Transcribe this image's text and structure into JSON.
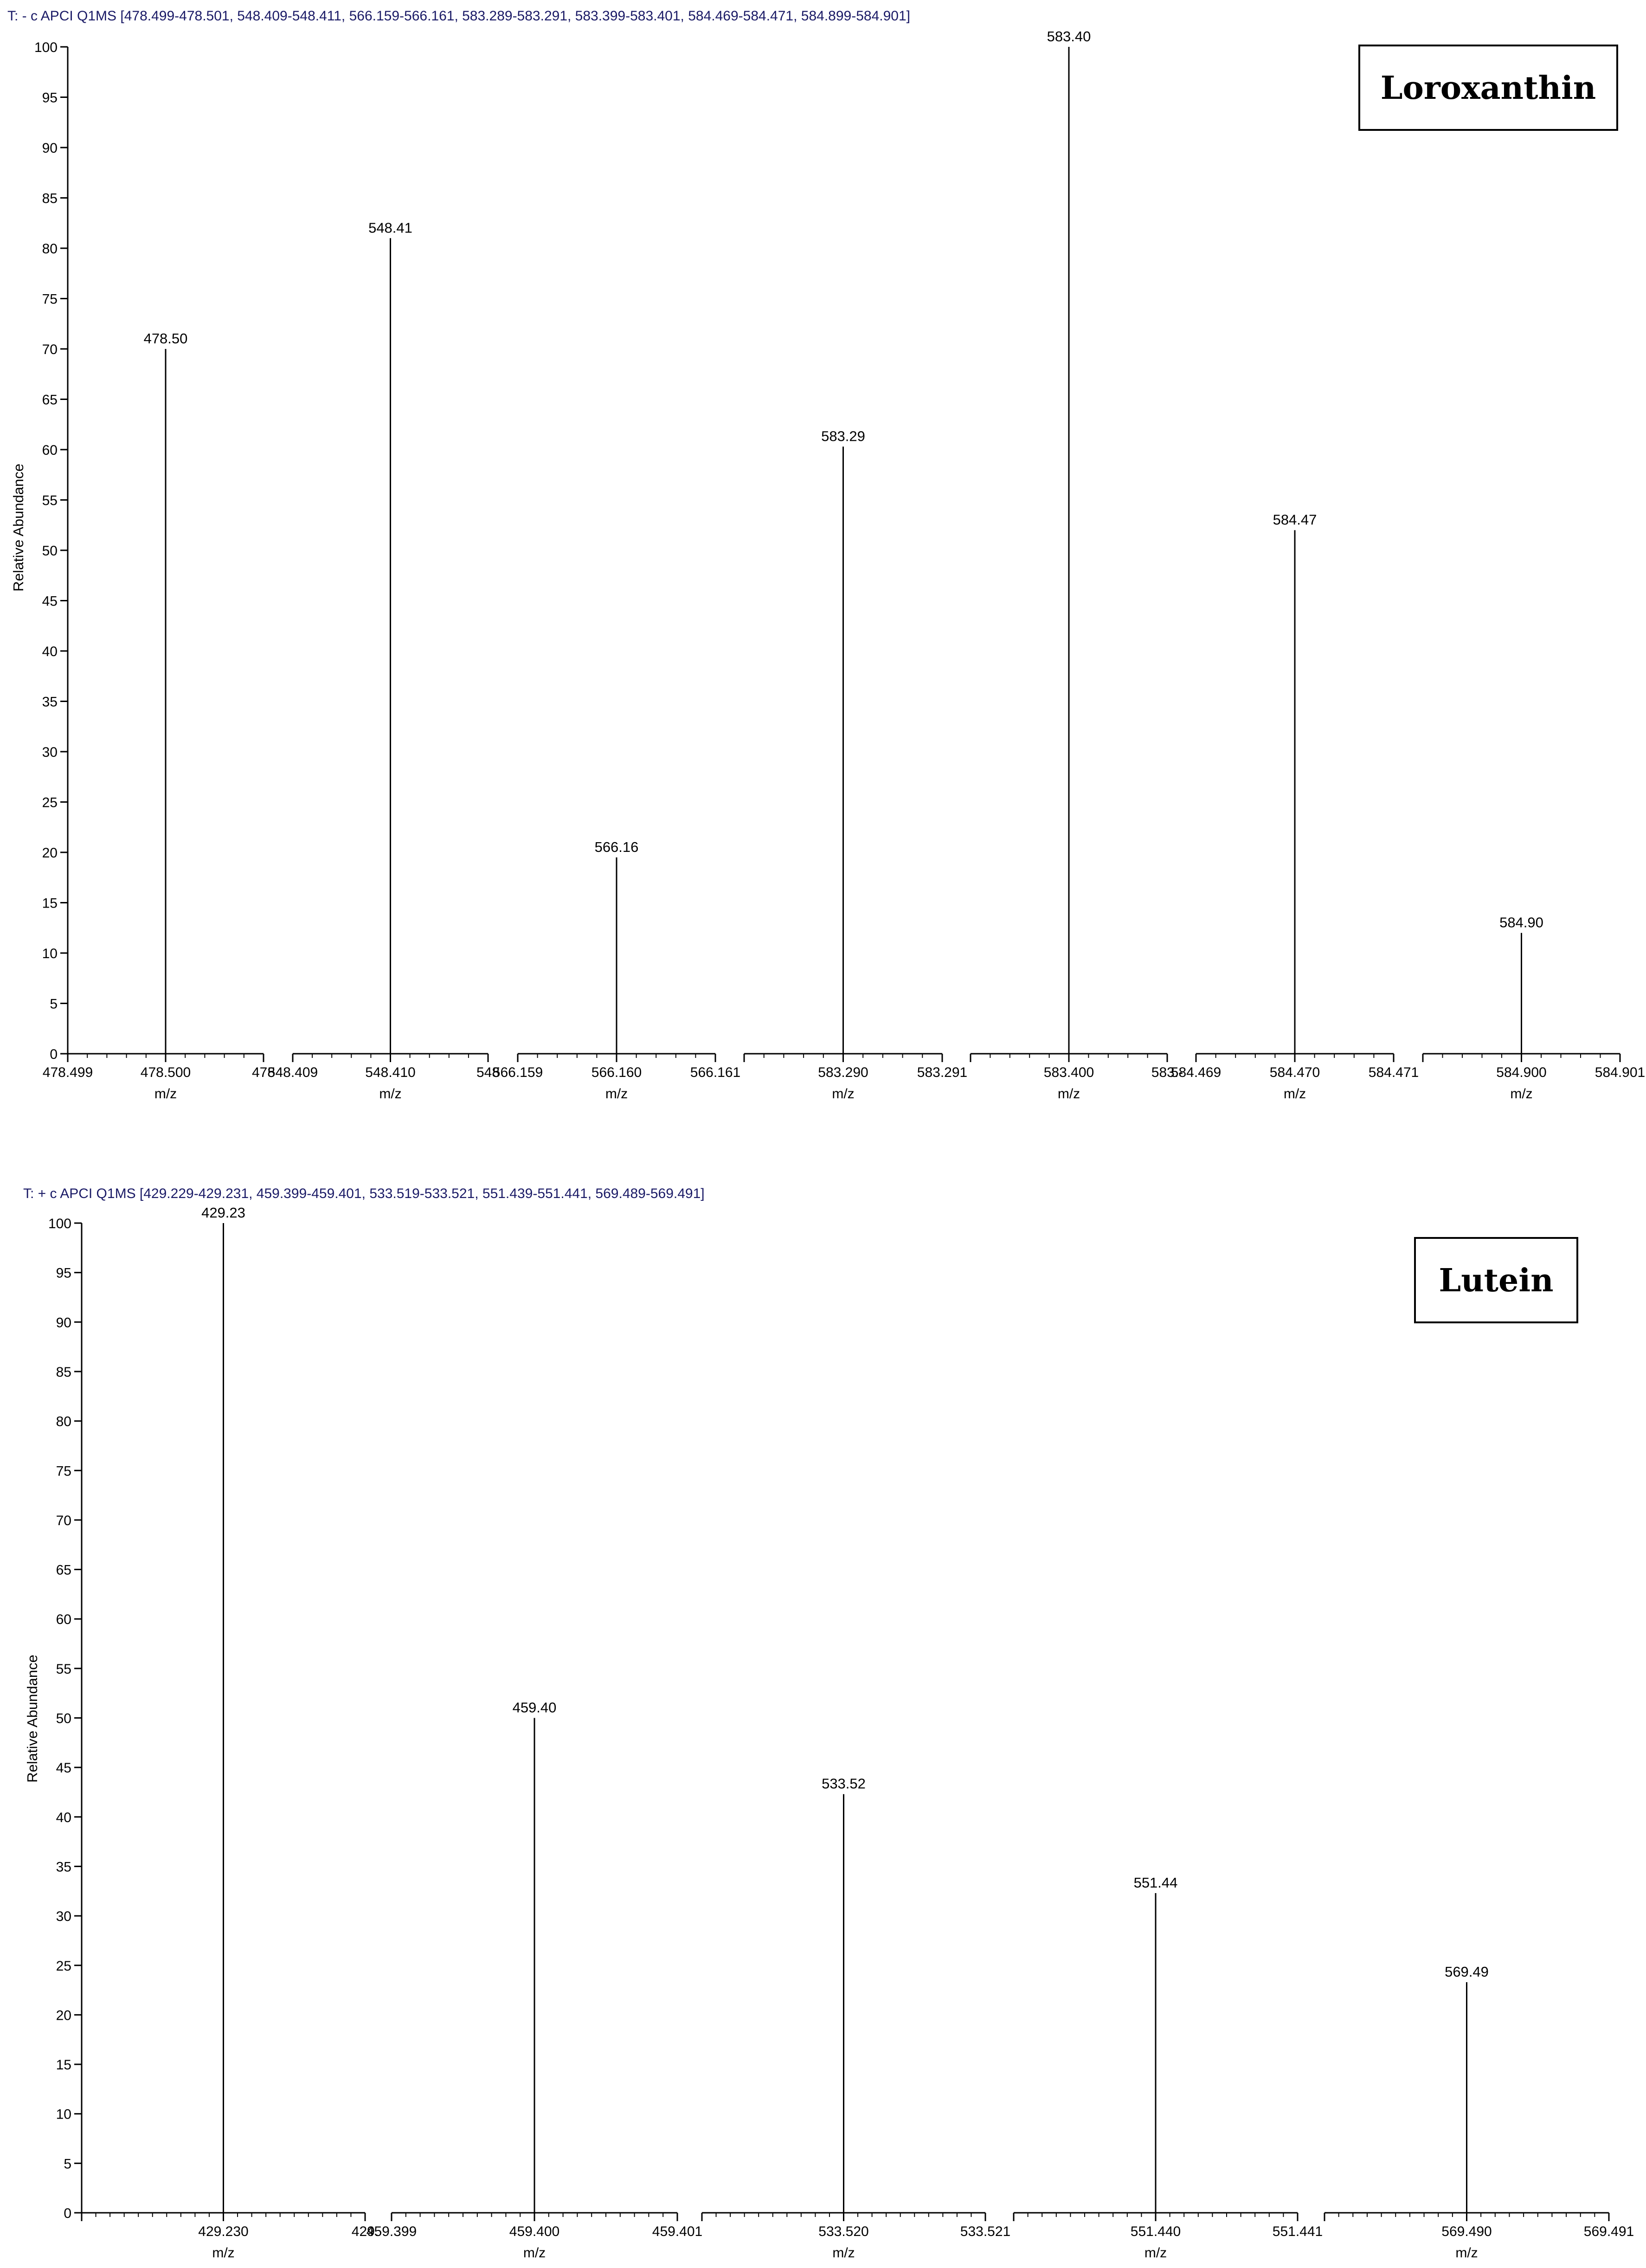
{
  "chart_data": [
    {
      "type": "bar",
      "chart_kind": "mass spectrum (stick plot)",
      "header": "T: - c APCI Q1MS [478.499-478.501, 548.409-548.411, 566.159-566.161, 583.289-583.291, 583.399-583.401, 584.469-584.471, 584.899-584.901]",
      "compound_label": "Loroxanthin",
      "ylabel": "Relative Abundance",
      "xlabel": "m/z",
      "ylim": [
        0,
        100
      ],
      "y_ticks": [
        0,
        5,
        10,
        15,
        20,
        25,
        30,
        35,
        40,
        45,
        50,
        55,
        60,
        65,
        70,
        75,
        80,
        85,
        90,
        95,
        100
      ],
      "grid": false,
      "segments": [
        {
          "range": [
            478.499,
            478.501
          ],
          "tick_labels": [
            "478.499",
            "478.500",
            "478"
          ],
          "xlabel": "m/z",
          "peak": {
            "x": 478.5,
            "y": 70,
            "label": "478.50"
          }
        },
        {
          "range": [
            548.409,
            548.411
          ],
          "tick_labels": [
            "548.409",
            "548.410",
            "548"
          ],
          "xlabel": "m/z",
          "peak": {
            "x": 548.41,
            "y": 81,
            "label": "548.41"
          }
        },
        {
          "range": [
            566.159,
            566.161
          ],
          "tick_labels": [
            "566.159",
            "566.160",
            "566.161"
          ],
          "xlabel": "m/z",
          "peak": {
            "x": 566.16,
            "y": 19.5,
            "label": "566.16"
          }
        },
        {
          "range": [
            583.289,
            583.291
          ],
          "tick_labels": [
            "",
            "583.290",
            "583.291"
          ],
          "xlabel": "m/z",
          "peak": {
            "x": 583.29,
            "y": 60.3,
            "label": "583.29"
          }
        },
        {
          "range": [
            583.399,
            583.401
          ],
          "tick_labels": [
            "",
            "583.400",
            "583.-"
          ],
          "xlabel": "m/z",
          "peak": {
            "x": 583.4,
            "y": 100,
            "label": "583.40"
          }
        },
        {
          "range": [
            584.469,
            584.471
          ],
          "tick_labels": [
            "584.469",
            "584.470",
            "584.471"
          ],
          "xlabel": "m/z",
          "peak": {
            "x": 584.47,
            "y": 52,
            "label": "584.47"
          }
        },
        {
          "range": [
            584.899,
            584.901
          ],
          "tick_labels": [
            "",
            "584.900",
            "584.901"
          ],
          "xlabel": "m/z",
          "peak": {
            "x": 584.9,
            "y": 12,
            "label": "584.90"
          }
        }
      ]
    },
    {
      "type": "bar",
      "chart_kind": "mass spectrum (stick plot)",
      "header": "T: + c APCI Q1MS [429.229-429.231, 459.399-459.401, 533.519-533.521, 551.439-551.441, 569.489-569.491]",
      "compound_label": "Lutein",
      "ylabel": "Relative Abundance",
      "xlabel": "m/z",
      "ylim": [
        0,
        100
      ],
      "y_ticks": [
        0,
        5,
        10,
        15,
        20,
        25,
        30,
        35,
        40,
        45,
        50,
        55,
        60,
        65,
        70,
        75,
        80,
        85,
        90,
        95,
        100
      ],
      "grid": false,
      "segments": [
        {
          "range": [
            429.229,
            429.231
          ],
          "tick_labels": [
            "",
            "429.230",
            "429."
          ],
          "xlabel": "m/z",
          "peak": {
            "x": 429.23,
            "y": 100,
            "label": "429.23"
          }
        },
        {
          "range": [
            459.399,
            459.401
          ],
          "tick_labels": [
            "459.399",
            "459.400",
            "459.401"
          ],
          "xlabel": "m/z",
          "peak": {
            "x": 459.4,
            "y": 50,
            "label": "459.40"
          }
        },
        {
          "range": [
            533.519,
            533.521
          ],
          "tick_labels": [
            "",
            "533.520",
            "533.521"
          ],
          "xlabel": "m/z",
          "peak": {
            "x": 533.52,
            "y": 42.3,
            "label": "533.52"
          }
        },
        {
          "range": [
            551.439,
            551.441
          ],
          "tick_labels": [
            "",
            "551.440",
            "551.441"
          ],
          "xlabel": "m/z",
          "peak": {
            "x": 551.44,
            "y": 32.3,
            "label": "551.44"
          }
        },
        {
          "range": [
            569.489,
            569.491
          ],
          "tick_labels": [
            "",
            "569.490",
            "569.491"
          ],
          "xlabel": "m/z",
          "peak": {
            "x": 569.49,
            "y": 23.3,
            "label": "569.49"
          }
        }
      ]
    }
  ]
}
